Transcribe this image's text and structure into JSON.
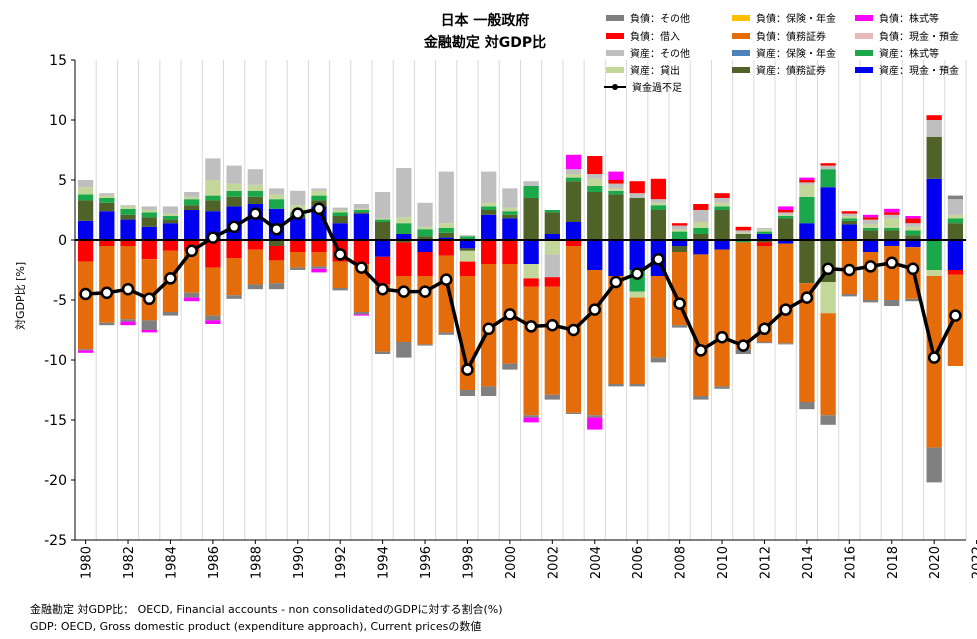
{
  "chart_data": {
    "type": "bar",
    "stacked": true,
    "title": "日本 一般政府",
    "subtitle": "金融勘定 対GDP比",
    "ylabel": "対GDP比 [%]",
    "xlabel": "",
    "ylim": [
      -25,
      15
    ],
    "yticks": [
      15,
      10,
      5,
      0,
      -5,
      -10,
      -15,
      -20,
      -25
    ],
    "xtick_labels": [
      "1980",
      "1982",
      "1984",
      "1986",
      "1988",
      "1990",
      "1992",
      "1994",
      "1996",
      "1998",
      "2000",
      "2002",
      "2004",
      "2006",
      "2008",
      "2010",
      "2012",
      "2014",
      "2016",
      "2018",
      "2020",
      "2022"
    ],
    "grid": "vertical",
    "categories": [
      "1980",
      "1981",
      "1982",
      "1983",
      "1984",
      "1985",
      "1986",
      "1987",
      "1988",
      "1989",
      "1990",
      "1991",
      "1992",
      "1993",
      "1994",
      "1995",
      "1996",
      "1997",
      "1998",
      "1999",
      "2000",
      "2001",
      "2002",
      "2003",
      "2004",
      "2005",
      "2006",
      "2007",
      "2008",
      "2009",
      "2010",
      "2011",
      "2012",
      "2013",
      "2014",
      "2015",
      "2016",
      "2017",
      "2018",
      "2019",
      "2020",
      "2021"
    ],
    "series": [
      {
        "name": "資産：現金・預金",
        "color": "#0000ee",
        "values": [
          1.6,
          2.4,
          1.7,
          1.1,
          1.4,
          2.5,
          2.4,
          2.8,
          3.0,
          2.6,
          1.8,
          2.8,
          1.4,
          2.2,
          -1.4,
          0.5,
          -1.0,
          0.2,
          -0.7,
          2.1,
          1.8,
          -2.0,
          0.5,
          1.5,
          -2.5,
          -3.0,
          -2.5,
          -3.0,
          -0.5,
          -1.2,
          -0.8,
          0.1,
          0.5,
          -0.3,
          1.4,
          4.4,
          1.3,
          -1.0,
          -0.5,
          -0.6,
          5.1,
          -2.5
        ]
      },
      {
        "name": "資産：債務証券",
        "color": "#4f6228",
        "values": [
          1.7,
          0.7,
          0.4,
          0.8,
          0.3,
          0.4,
          0.9,
          0.8,
          0.6,
          -0.5,
          0.3,
          0.5,
          0.6,
          0.1,
          1.5,
          -0.2,
          0.3,
          0.4,
          -0.2,
          0.4,
          0.3,
          3.5,
          1.8,
          3.4,
          4.0,
          3.8,
          3.5,
          2.5,
          -0.5,
          0.5,
          2.5,
          0.4,
          -0.2,
          1.8,
          -3.6,
          -3.5,
          0.3,
          0.8,
          0.8,
          0.4,
          3.5,
          1.4
        ]
      },
      {
        "name": "資産：株式等",
        "color": "#1aa84b",
        "values": [
          0.5,
          0.4,
          0.5,
          0.4,
          0.3,
          0.5,
          0.4,
          0.5,
          0.5,
          0.8,
          0.2,
          0.4,
          0.3,
          0.2,
          0.2,
          0.9,
          0.6,
          0.4,
          0.3,
          0.3,
          0.3,
          1.0,
          0.2,
          0.3,
          0.5,
          0.3,
          -1.8,
          0.4,
          0.7,
          0.5,
          0.3,
          -0.2,
          0.2,
          0.2,
          2.2,
          1.5,
          0.2,
          0.2,
          0.2,
          0.4,
          -2.5,
          0.4
        ]
      },
      {
        "name": "資産：保険・年金",
        "color": "#4f81bd",
        "values": [
          0,
          0,
          0,
          0,
          0,
          0,
          0,
          0,
          0,
          0,
          0,
          0,
          0,
          0,
          0,
          0,
          0,
          0,
          0,
          0,
          0,
          0,
          0,
          0,
          0,
          0,
          0,
          0,
          0,
          0,
          0,
          0,
          0,
          0,
          0,
          0,
          0,
          0,
          0,
          0,
          0,
          0
        ]
      },
      {
        "name": "資産：貸出",
        "color": "#c4d79b",
        "values": [
          0.6,
          0.2,
          0.2,
          0.2,
          0.2,
          0.2,
          1.3,
          0.6,
          0.5,
          0.4,
          0.6,
          0.4,
          0.2,
          0.1,
          0.1,
          0.5,
          0.2,
          0.4,
          -0.9,
          0.3,
          0.3,
          -1.2,
          -1.2,
          0.3,
          0.6,
          0.2,
          -0.5,
          0.2,
          0.2,
          0.5,
          0.3,
          0.1,
          0.2,
          0.1,
          1.0,
          -2.6,
          0.2,
          0.3,
          0.8,
          0.3,
          -0.5,
          0.3
        ]
      },
      {
        "name": "資産：その他",
        "color": "#bfbfbf",
        "values": [
          0.6,
          0.2,
          0.1,
          0.3,
          0.6,
          0.4,
          1.8,
          1.5,
          1.3,
          0.5,
          1.2,
          0.2,
          0.2,
          0.4,
          2.2,
          4.1,
          2.0,
          4.3,
          0.1,
          2.6,
          1.6,
          0.4,
          -1.9,
          0.4,
          0.4,
          0.4,
          0.4,
          0.3,
          0.3,
          1.0,
          0.4,
          0.2,
          0.1,
          0.2,
          0.2,
          0.3,
          0.2,
          0.4,
          0.3,
          0.3,
          1.4,
          1.3
        ]
      },
      {
        "name": "資産：現金・預金",
        "color": "#f2dcdb",
        "values": [
          0,
          0,
          0,
          0,
          0,
          0,
          0,
          0,
          0,
          0,
          0,
          0,
          0,
          0,
          0,
          0,
          0,
          0,
          0,
          0,
          0,
          0,
          0,
          0,
          0,
          0,
          0,
          0,
          0,
          0,
          0,
          0,
          0,
          0,
          0,
          0,
          0,
          0,
          0,
          0,
          0,
          0
        ]
      },
      {
        "name": "負債：借入",
        "color": "#ff0000",
        "values": [
          -1.8,
          -0.5,
          -0.5,
          -1.6,
          -0.9,
          -0.9,
          -2.3,
          -1.5,
          -0.8,
          -1.2,
          -1.0,
          -1.0,
          -1.8,
          -2.0,
          -2.3,
          -2.8,
          -2.0,
          -1.3,
          -1.2,
          -2.0,
          -2.0,
          -0.7,
          -0.8,
          -0.5,
          1.5,
          0.3,
          1.0,
          1.7,
          0.2,
          0.5,
          0.4,
          0.3,
          -0.3,
          0.2,
          0.2,
          0.2,
          0.2,
          0.2,
          0.2,
          0.4,
          0.4,
          -0.4
        ]
      },
      {
        "name": "負債：債務証券",
        "color": "#e46c0a",
        "values": [
          -7.3,
          -6.4,
          -6.1,
          -5.1,
          -5.1,
          -3.5,
          -4.0,
          -3.1,
          -2.9,
          -1.9,
          -1.3,
          -1.2,
          -2.2,
          -4.0,
          -5.6,
          -5.5,
          -5.7,
          -6.4,
          -9.5,
          -10.2,
          -8.3,
          -10.7,
          -9.0,
          -13.9,
          -12.1,
          -9.0,
          -7.2,
          -6.8,
          -6.1,
          -11.8,
          -11.4,
          -8.9,
          -8.0,
          -8.3,
          -9.9,
          -8.5,
          -4.5,
          -4.0,
          -4.5,
          -4.3,
          -14.3,
          -7.6
        ]
      },
      {
        "name": "負債：その他",
        "color": "#808080",
        "values": [
          -0.1,
          -0.2,
          -0.2,
          -0.8,
          -0.3,
          -0.4,
          -0.4,
          -0.3,
          -0.4,
          -0.5,
          -0.2,
          -0.2,
          -0.2,
          -0.2,
          -0.2,
          -1.3,
          -0.1,
          -0.2,
          -0.5,
          -0.8,
          -0.5,
          -0.2,
          -0.4,
          -0.1,
          -0.2,
          -0.2,
          -0.2,
          -0.4,
          -0.2,
          -0.3,
          -0.2,
          -0.4,
          -0.1,
          -0.1,
          -0.6,
          -0.8,
          -0.2,
          -0.2,
          -0.5,
          -0.2,
          -2.9,
          0.3
        ]
      },
      {
        "name": "負債：株式等",
        "color": "#ff00ff",
        "values": [
          -0.2,
          0,
          -0.3,
          -0.2,
          0,
          -0.3,
          -0.3,
          0,
          0,
          0,
          0,
          -0.3,
          0,
          -0.1,
          0,
          0,
          0,
          0,
          0,
          0,
          0,
          -0.4,
          0,
          1.2,
          -1.0,
          0.7,
          0,
          0,
          0,
          0,
          0,
          0,
          0,
          0.3,
          0.2,
          0,
          0,
          0.2,
          0.3,
          0.2,
          0,
          0
        ]
      },
      {
        "name": "負債：保険・年金",
        "color": "#ffc000",
        "values": [
          0,
          0,
          0,
          0,
          0,
          0,
          0,
          0,
          0,
          0,
          0,
          0,
          0,
          0,
          0,
          0,
          0,
          0,
          0,
          0,
          0,
          0,
          0,
          0,
          0,
          0,
          0,
          0,
          0,
          0,
          0,
          0,
          0,
          0,
          0,
          0,
          0,
          0,
          0,
          0,
          0,
          0
        ]
      },
      {
        "name": "負債：現金・預金",
        "color": "#e6b8b7",
        "values": [
          0,
          0,
          0,
          0,
          0,
          0,
          0,
          0,
          0,
          0,
          0,
          0,
          0,
          0,
          0,
          0,
          0,
          0,
          0,
          0,
          0,
          0,
          0,
          0,
          0,
          0,
          0,
          0,
          0,
          0,
          0,
          0,
          0,
          0,
          0,
          0,
          0,
          0,
          0,
          0,
          0,
          0
        ]
      }
    ],
    "line": {
      "name": "資金過不足",
      "color": "#000000",
      "values": [
        -4.5,
        -4.4,
        -4.1,
        -4.9,
        -3.2,
        -0.9,
        0.2,
        1.1,
        2.2,
        0.9,
        2.2,
        2.6,
        -1.2,
        -2.3,
        -4.1,
        -4.3,
        -4.3,
        -3.3,
        -10.8,
        -7.4,
        -6.2,
        -7.2,
        -7.1,
        -7.5,
        -5.8,
        -3.5,
        -2.8,
        -1.6,
        -5.3,
        -9.2,
        -8.1,
        -8.8,
        -7.4,
        -5.8,
        -4.8,
        -2.4,
        -2.5,
        -2.2,
        -1.9,
        -2.4,
        -9.8,
        -6.3
      ]
    }
  },
  "legend": [
    {
      "label": "負債：その他",
      "color": "#808080"
    },
    {
      "label": "負債：保険・年金",
      "color": "#ffc000"
    },
    {
      "label": "負債：株式等",
      "color": "#ff00ff"
    },
    {
      "label": "負債：借入",
      "color": "#ff0000"
    },
    {
      "label": "負債：債務証券",
      "color": "#e46c0a"
    },
    {
      "label": "負債：現金・預金",
      "color": "#e6b8b7"
    },
    {
      "label": "資産：その他",
      "color": "#bfbfbf"
    },
    {
      "label": "資産：保険・年金",
      "color": "#4f81bd"
    },
    {
      "label": "資産：株式等",
      "color": "#1aa84b"
    },
    {
      "label": "資産：貸出",
      "color": "#c4d79b"
    },
    {
      "label": "資産：債務証券",
      "color": "#4f6228"
    },
    {
      "label": "資産：現金・預金",
      "color": "#0000ee"
    },
    {
      "label": "資金過不足",
      "color": "#000000"
    }
  ],
  "notes": [
    "金融勘定 対GDP比： OECD, Financial accounts - non consolidatedのGDPに対する割合(%)",
    "GDP: OECD, Gross domestic product (expenditure approach), Current pricesの数値"
  ]
}
